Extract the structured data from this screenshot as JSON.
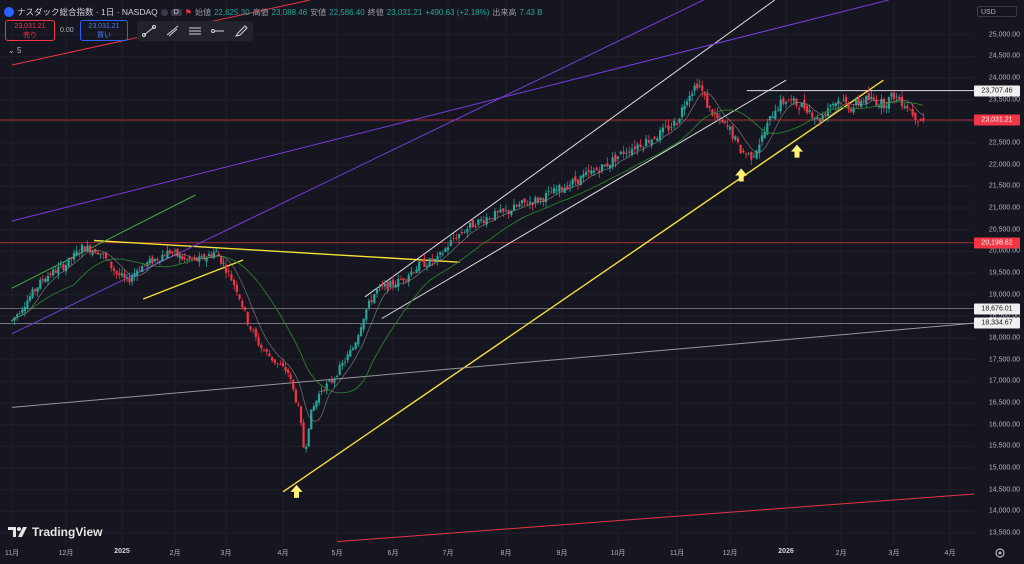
{
  "header": {
    "symbol": "ナスダック総合指数 · 1日 · NASDAQ",
    "interval_badge": "D",
    "open_label": "始値",
    "open": "22,625.30",
    "high_label": "高値",
    "high": "23,088.46",
    "low_label": "安値",
    "low": "22,586.40",
    "close_label": "終値",
    "close": "23,031.21",
    "change": "+490.63 (+2.18%)",
    "volume_label": "出来高",
    "volume": "7.43 B",
    "flag_icon": "flag-icon"
  },
  "quote": {
    "sell_price": "23,031.21",
    "sell_label": "売り",
    "spread": "0.00",
    "buy_price": "23,031.21",
    "buy_label": "買い"
  },
  "toolbar": {
    "icons": [
      "trend-line-icon",
      "ray-icon",
      "parallel-channel-icon",
      "horizontal-ray-icon",
      "pen-icon"
    ]
  },
  "indicator_row": {
    "label": "5"
  },
  "currency": "USD",
  "branding": "TradingView",
  "colors": {
    "up": "#26a69a",
    "down": "#f23645",
    "bg": "#161620",
    "yellow": "#ffeb3b",
    "purple": "#7b3fe4",
    "white": "#e8e8e8",
    "red": "#f23645"
  },
  "chart_data": {
    "type": "candlestick",
    "ylim": [
      13200,
      25800
    ],
    "y_ticks": [
      13500,
      14000,
      14500,
      15000,
      15500,
      16000,
      16500,
      17000,
      17500,
      18000,
      18500,
      19000,
      19500,
      20000,
      20500,
      21000,
      21500,
      22000,
      22500,
      23000,
      23500,
      24000,
      24500,
      25000
    ],
    "x_labels": [
      "11月",
      "12月",
      "2025",
      "2月",
      "3月",
      "4月",
      "5月",
      "6月",
      "7月",
      "8月",
      "9月",
      "10月",
      "11月",
      "12月",
      "2026",
      "2月",
      "3月",
      "4月"
    ],
    "x_label_months": [
      0,
      1,
      2,
      3,
      4,
      5,
      6,
      7,
      8,
      9,
      10,
      11,
      12,
      13,
      14,
      15,
      16,
      17
    ],
    "price_labels": [
      {
        "value": 23707.46,
        "text": "23,707.46",
        "style": "white"
      },
      {
        "value": 23031.21,
        "text": "23,031.21",
        "style": "red"
      },
      {
        "value": 20198.62,
        "text": "20,198.62",
        "style": "red"
      },
      {
        "value": 18676.01,
        "text": "18,676.01",
        "style": "white"
      },
      {
        "value": 18334.67,
        "text": "18,334.67",
        "style": "white"
      }
    ],
    "path_points": [
      [
        0,
        18400
      ],
      [
        0.3,
        18900
      ],
      [
        0.6,
        19400
      ],
      [
        1.0,
        19700
      ],
      [
        1.3,
        20100
      ],
      [
        1.6,
        20000
      ],
      [
        1.9,
        19500
      ],
      [
        2.1,
        19300
      ],
      [
        2.3,
        19600
      ],
      [
        2.6,
        19800
      ],
      [
        2.9,
        20000
      ],
      [
        3.2,
        19800
      ],
      [
        3.5,
        19800
      ],
      [
        3.8,
        20000
      ],
      [
        4.0,
        19600
      ],
      [
        4.2,
        19100
      ],
      [
        4.4,
        18300
      ],
      [
        4.6,
        17800
      ],
      [
        4.9,
        17400
      ],
      [
        5.1,
        17200
      ],
      [
        5.3,
        16300
      ],
      [
        5.4,
        15300
      ],
      [
        5.5,
        16200
      ],
      [
        5.7,
        16800
      ],
      [
        5.9,
        17000
      ],
      [
        6.1,
        17400
      ],
      [
        6.3,
        17800
      ],
      [
        6.5,
        18600
      ],
      [
        6.7,
        19100
      ],
      [
        6.9,
        19200
      ],
      [
        7.1,
        19300
      ],
      [
        7.3,
        19500
      ],
      [
        7.5,
        19700
      ],
      [
        7.8,
        19800
      ],
      [
        8.1,
        20300
      ],
      [
        8.4,
        20600
      ],
      [
        8.7,
        20800
      ],
      [
        9.0,
        20900
      ],
      [
        9.3,
        21100
      ],
      [
        9.6,
        21200
      ],
      [
        9.9,
        21400
      ],
      [
        10.2,
        21600
      ],
      [
        10.5,
        21800
      ],
      [
        10.8,
        22000
      ],
      [
        11.1,
        22300
      ],
      [
        11.4,
        22500
      ],
      [
        11.7,
        22700
      ],
      [
        12.0,
        23000
      ],
      [
        12.2,
        23600
      ],
      [
        12.4,
        23900
      ],
      [
        12.6,
        23300
      ],
      [
        12.8,
        23000
      ],
      [
        13.0,
        22800
      ],
      [
        13.2,
        22300
      ],
      [
        13.4,
        22200
      ],
      [
        13.6,
        22700
      ],
      [
        13.8,
        23300
      ],
      [
        14.0,
        23500
      ],
      [
        14.2,
        23400
      ],
      [
        14.4,
        23300
      ],
      [
        14.6,
        23000
      ],
      [
        14.8,
        23400
      ],
      [
        15.0,
        23500
      ],
      [
        15.2,
        23300
      ],
      [
        15.4,
        23500
      ],
      [
        15.6,
        23500
      ],
      [
        15.8,
        23400
      ],
      [
        16.0,
        23600
      ],
      [
        16.2,
        23400
      ],
      [
        16.4,
        23100
      ],
      [
        16.55,
        23000
      ]
    ],
    "arrows": [
      [
        5.25,
        14450
      ],
      [
        13.2,
        21750
      ],
      [
        14.2,
        22300
      ]
    ],
    "trend_lines": [
      {
        "color": "yellow",
        "points": [
          [
            5.0,
            14450
          ],
          [
            15.8,
            23950
          ]
        ]
      },
      {
        "color": "yellow",
        "points": [
          [
            1.5,
            20250
          ],
          [
            8.2,
            19750
          ]
        ]
      },
      {
        "color": "yellow",
        "points": [
          [
            2.4,
            18900
          ],
          [
            4.3,
            19800
          ]
        ]
      },
      {
        "color": "white",
        "points": [
          [
            6.5,
            18950
          ],
          [
            13.8,
            25800
          ]
        ]
      },
      {
        "color": "white",
        "points": [
          [
            6.8,
            18450
          ],
          [
            14.0,
            23950
          ]
        ]
      },
      {
        "color": "white",
        "points": [
          [
            13.3,
            23707.46
          ],
          [
            17.95,
            23707.46
          ]
        ]
      },
      {
        "color": "green",
        "points": [
          [
            0,
            19150
          ],
          [
            3.4,
            21300
          ]
        ]
      },
      {
        "color": "purple",
        "points": [
          [
            0,
            20700
          ],
          [
            15.9,
            25800
          ]
        ]
      },
      {
        "color": "purple",
        "points": [
          [
            0,
            18100
          ],
          [
            12.5,
            25800
          ]
        ]
      },
      {
        "color": "gray",
        "points": [
          [
            0,
            16400
          ],
          [
            17.95,
            18400
          ]
        ]
      },
      {
        "color": "red",
        "points": [
          [
            0,
            24300
          ],
          [
            5.5,
            25800
          ]
        ]
      },
      {
        "color": "red",
        "points": [
          [
            6.0,
            13300
          ],
          [
            17.95,
            14450
          ]
        ]
      }
    ],
    "hlines": [
      {
        "value": 20198.62,
        "color": "red"
      },
      {
        "value": 23031.21,
        "color": "red"
      },
      {
        "value": 18676.01,
        "color": "gray"
      },
      {
        "value": 18334.67,
        "color": "gray"
      }
    ]
  }
}
